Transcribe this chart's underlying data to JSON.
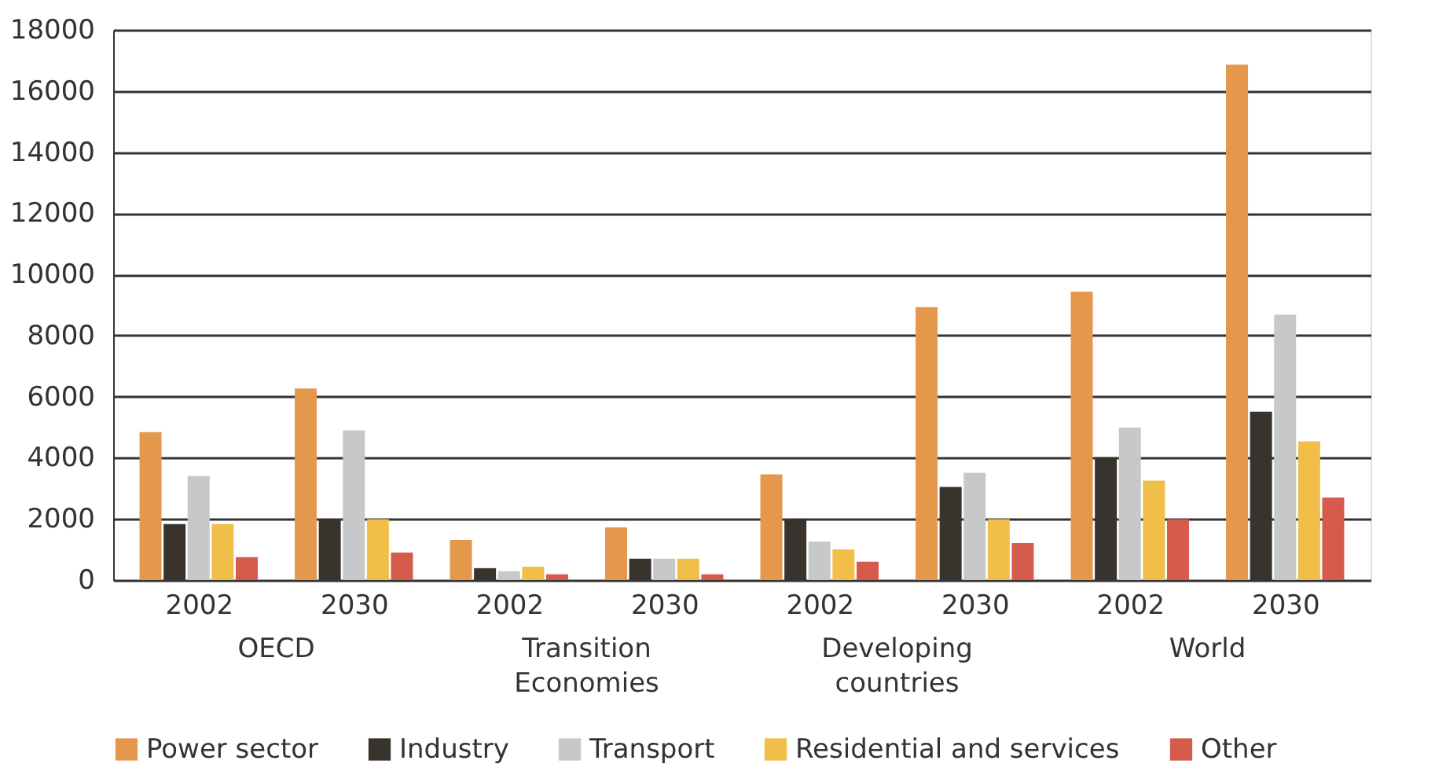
{
  "chart_data": {
    "type": "bar",
    "categories": [
      "2002",
      "2030",
      "2002",
      "2030",
      "2002",
      "2030",
      "2002",
      "2030"
    ],
    "series": [
      {
        "name": "Power sector",
        "color": "#e4984c",
        "values": [
          4840,
          6270,
          1310,
          1720,
          3460,
          8930,
          9440,
          16860
        ]
      },
      {
        "name": "Industry",
        "color": "#39332e",
        "values": [
          1830,
          2000,
          390,
          700,
          2000,
          3050,
          4020,
          5510
        ]
      },
      {
        "name": "Transport",
        "color": "#c7c8c9",
        "values": [
          3410,
          4900,
          290,
          700,
          1260,
          3510,
          4990,
          8680
        ]
      },
      {
        "name": "Residential and services",
        "color": "#f2be4a",
        "values": [
          1830,
          1990,
          440,
          700,
          1000,
          1990,
          3250,
          4540
        ]
      },
      {
        "name": "Other",
        "color": "#d65b4d",
        "values": [
          750,
          900,
          190,
          190,
          600,
          1210,
          1990,
          2700
        ]
      }
    ],
    "annotations": [
      "OECD",
      "Transition Economies",
      "Developing countries",
      "World"
    ],
    "ylim": [
      0,
      18000
    ],
    "yticks": [
      0,
      2000,
      4000,
      6000,
      8000,
      10000,
      12000,
      14000,
      16000,
      18000
    ],
    "grid": "y",
    "legend": "bottom"
  }
}
